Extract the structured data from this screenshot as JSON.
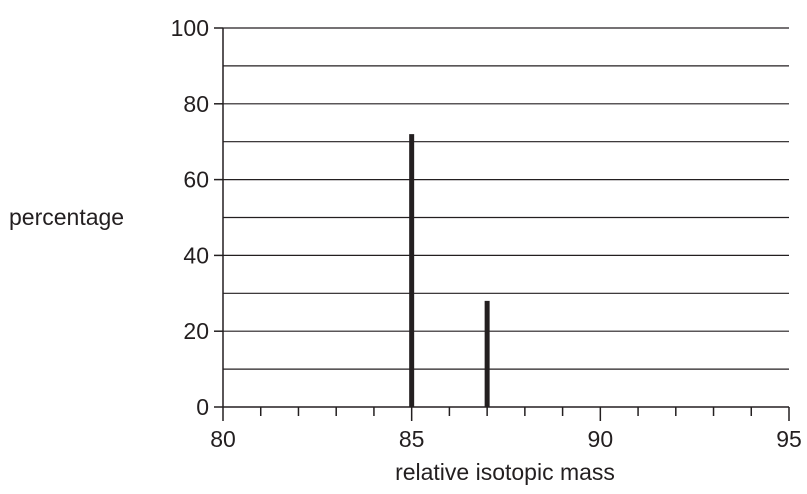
{
  "chart_data": {
    "type": "bar",
    "title": "",
    "xlabel": "relative isotopic mass",
    "ylabel": "percentage",
    "xlim": [
      80,
      95
    ],
    "ylim": [
      0,
      100
    ],
    "x_ticks": [
      "80",
      "85",
      "90",
      "95"
    ],
    "y_ticks": [
      "0",
      "20",
      "40",
      "60",
      "80",
      "100"
    ],
    "x_minor_step": 1,
    "y_grid_step": 10,
    "grid": "horizontal",
    "legend": "none",
    "bar_color": "#231f20",
    "points": [
      {
        "x": 85,
        "y": 72
      },
      {
        "x": 87,
        "y": 28
      }
    ]
  }
}
